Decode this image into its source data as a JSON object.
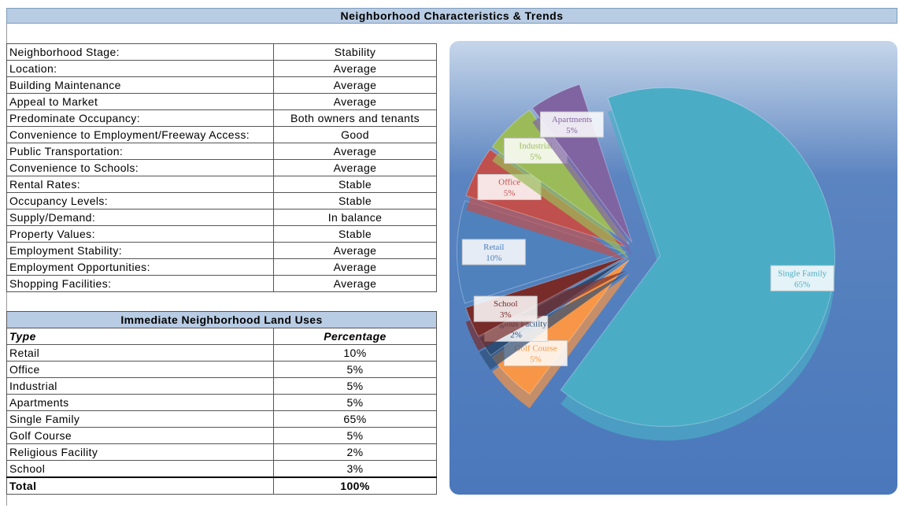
{
  "header": {
    "title": "Neighborhood Characteristics & Trends"
  },
  "characteristics": {
    "rows": [
      [
        "Neighborhood Stage:",
        "Stability"
      ],
      [
        "Location:",
        "Average"
      ],
      [
        "Building Maintenance",
        "Average"
      ],
      [
        "Appeal to Market",
        "Average"
      ],
      [
        "Predominate Occupancy:",
        "Both owners and tenants"
      ],
      [
        "Convenience to Employment/Freeway Access:",
        "Good"
      ],
      [
        "Public Transportation:",
        "Average"
      ],
      [
        "Convenience to Schools:",
        "Average"
      ],
      [
        "Rental Rates:",
        "Stable"
      ],
      [
        "Occupancy Levels:",
        "Stable"
      ],
      [
        "Supply/Demand:",
        "In balance"
      ],
      [
        "Property Values:",
        "Stable"
      ],
      [
        "Employment Stability:",
        "Average"
      ],
      [
        "Employment Opportunities:",
        "Average"
      ],
      [
        "Shopping Facilities:",
        "Average"
      ]
    ]
  },
  "land_uses": {
    "title": "Immediate Neighborhood Land Uses",
    "columns": [
      "Type",
      "Percentage"
    ],
    "rows": [
      [
        "Retail",
        "10%"
      ],
      [
        "Office",
        "5%"
      ],
      [
        "Industrial",
        "5%"
      ],
      [
        "Apartments",
        "5%"
      ],
      [
        "Single Family",
        "65%"
      ],
      [
        "Golf Course",
        "5%"
      ],
      [
        "Religious Facility",
        "2%"
      ],
      [
        "School",
        "3%"
      ]
    ],
    "total": [
      "Total",
      "100%"
    ]
  },
  "chart_data": {
    "type": "pie",
    "categories": [
      "Retail",
      "Office",
      "Industrial",
      "Apartments",
      "Single Family",
      "Golf Course",
      "Religious Facility",
      "School"
    ],
    "values": [
      10,
      5,
      5,
      5,
      65,
      5,
      2,
      3
    ],
    "value_labels": [
      "10%",
      "5%",
      "5%",
      "5%",
      "65%",
      "5%",
      "2%",
      "3%"
    ],
    "colors": [
      "#4f81bd",
      "#c0504d",
      "#9bbb59",
      "#8064a2",
      "#4bacc6",
      "#f79646",
      "#2c4d75",
      "#772c2a"
    ]
  }
}
